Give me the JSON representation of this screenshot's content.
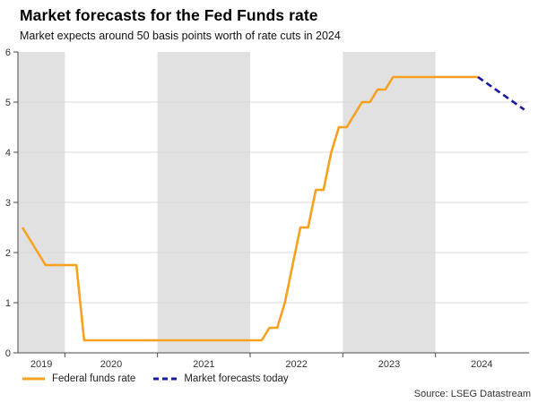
{
  "chart_data": {
    "type": "line",
    "title": "Market forecasts for the Fed Funds rate",
    "subtitle": "Market expects around 50 basis points worth of rate cuts in 2024",
    "source": "Source: LSEG Datastream",
    "xlabel": "",
    "ylabel": "",
    "x_domain": [
      2019.4936,
      2025.0
    ],
    "ylim": [
      0,
      6
    ],
    "y_ticks": [
      0,
      1,
      2,
      3,
      4,
      5,
      6
    ],
    "x_ticks": [
      {
        "year": 2019,
        "label": "2019"
      },
      {
        "year": 2020,
        "label": "2020"
      },
      {
        "year": 2021,
        "label": "2021"
      },
      {
        "year": 2022,
        "label": "2022"
      },
      {
        "year": 2023,
        "label": "2023"
      },
      {
        "year": 2024,
        "label": "2024"
      }
    ],
    "shaded_years": [
      2019,
      2021,
      2023
    ],
    "band_color": "#e1e1e1",
    "grid_color": "#d9d9d9",
    "axis_color": "#4a4a4a",
    "tick_label_color": "#333333",
    "grid": "horizontal",
    "legend_position": "bottom-left",
    "series": [
      {
        "name": "Federal funds rate",
        "color": "#F9A11E",
        "dash": "solid",
        "points": [
          [
            2019.542,
            2.5
          ],
          [
            2019.625,
            2.25
          ],
          [
            2019.708,
            2.0
          ],
          [
            2019.792,
            1.75
          ],
          [
            2020.125,
            1.75
          ],
          [
            2020.208,
            0.25
          ],
          [
            2022.125,
            0.25
          ],
          [
            2022.208,
            0.5
          ],
          [
            2022.292,
            0.5
          ],
          [
            2022.375,
            1.0
          ],
          [
            2022.458,
            1.75
          ],
          [
            2022.542,
            2.5
          ],
          [
            2022.625,
            2.5
          ],
          [
            2022.708,
            3.25
          ],
          [
            2022.792,
            3.25
          ],
          [
            2022.875,
            4.0
          ],
          [
            2022.958,
            4.5
          ],
          [
            2023.042,
            4.5
          ],
          [
            2023.125,
            4.75
          ],
          [
            2023.208,
            5.0
          ],
          [
            2023.292,
            5.0
          ],
          [
            2023.375,
            5.25
          ],
          [
            2023.458,
            5.25
          ],
          [
            2023.542,
            5.5
          ],
          [
            2024.458,
            5.5
          ]
        ]
      },
      {
        "name": "Market forecasts today",
        "color": "#1A1AA0",
        "dash": "dashed",
        "points": [
          [
            2024.458,
            5.5
          ],
          [
            2024.958,
            4.85
          ]
        ]
      }
    ]
  }
}
